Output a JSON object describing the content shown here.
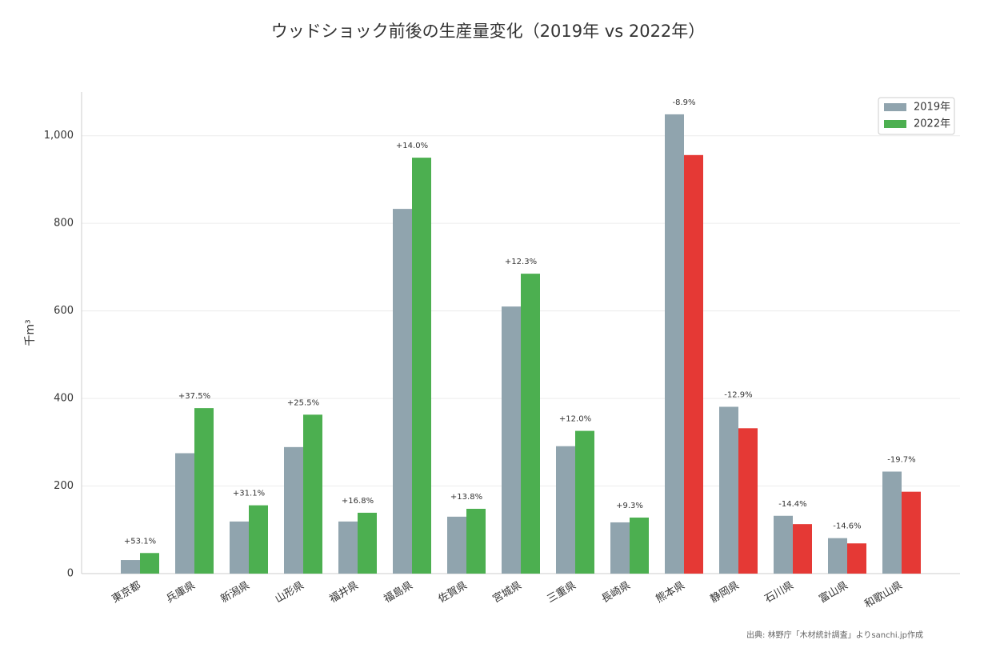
{
  "chart_data": {
    "type": "bar",
    "title": "ウッドショック前後の生産量変化（2019年 vs 2022年）",
    "y_label": "千m³",
    "source": "出典: 林野庁「木材統計調査」よりsanchi.jp作成",
    "categories": [
      "東京都",
      "兵庫県",
      "新潟県",
      "山形県",
      "福井県",
      "福島県",
      "佐賀県",
      "宮城県",
      "三重県",
      "長崎県",
      "熊本県",
      "静岡県",
      "石川県",
      "富山県",
      "和歌山県"
    ],
    "series": [
      {
        "name": "2019年",
        "color": "#90a4ae",
        "values": [
          31,
          275,
          119,
          289,
          119,
          833,
          130,
          610,
          291,
          117,
          1049,
          381,
          132,
          81,
          233
        ]
      },
      {
        "name": "2022年",
        "color": "#4caf50",
        "colors": [
          "#4caf50",
          "#4caf50",
          "#4caf50",
          "#4caf50",
          "#4caf50",
          "#4caf50",
          "#4caf50",
          "#4caf50",
          "#4caf50",
          "#4caf50",
          "#e53935",
          "#e53935",
          "#e53935",
          "#e53935",
          "#e53935"
        ],
        "values": [
          47,
          378,
          156,
          363,
          139,
          950,
          148,
          685,
          326,
          128,
          956,
          332,
          113,
          69,
          187
        ]
      }
    ],
    "change_labels": [
      "+53.1%",
      "+37.5%",
      "+31.1%",
      "+25.5%",
      "+16.8%",
      "+14.0%",
      "+13.8%",
      "+12.3%",
      "+12.0%",
      "+9.3%",
      "-8.9%",
      "-12.9%",
      "-14.4%",
      "-14.6%",
      "-19.7%"
    ],
    "ylim": [
      0,
      1100
    ],
    "yticks": [
      0,
      200,
      400,
      600,
      800,
      {
        "value": 1000,
        "label": "1,000"
      }
    ],
    "grid": true,
    "legend": "upper right"
  }
}
